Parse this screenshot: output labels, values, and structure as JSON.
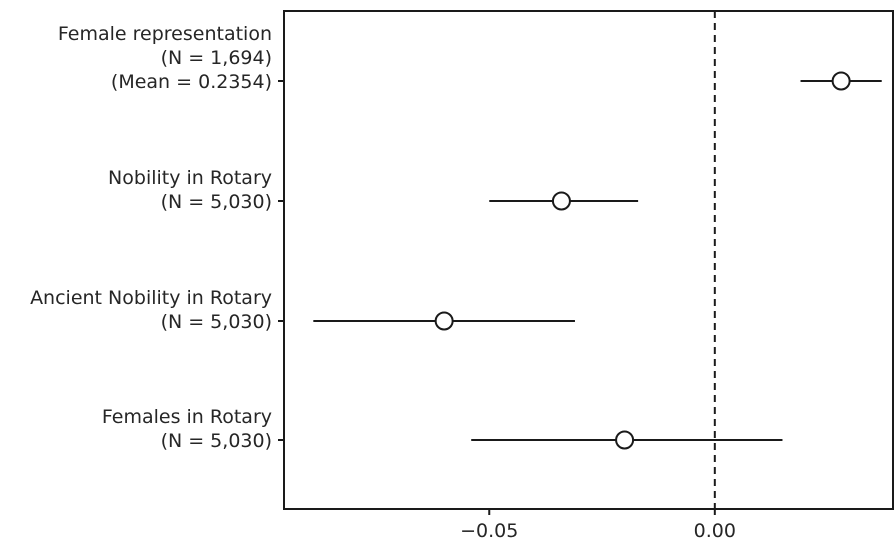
{
  "chart_data": {
    "type": "scatter",
    "subtype": "coefficient-plot",
    "title": "",
    "xlabel": "",
    "ylabel": "",
    "xlim": [
      -0.0955,
      0.0395
    ],
    "x_ticks": [
      {
        "value": -0.05,
        "label": "−0.05"
      },
      {
        "value": 0.0,
        "label": "0.00"
      }
    ],
    "reference_line": {
      "x": 0.0,
      "style": "dashed"
    },
    "grid": false,
    "rows": [
      {
        "label": [
          "Female representation",
          "(N = 1,694)",
          "(Mean = 0.2354)"
        ],
        "estimate": 0.028,
        "ci_low": 0.019,
        "ci_high": 0.037
      },
      {
        "label": [
          "Nobility in Rotary",
          "(N = 5,030)"
        ],
        "estimate": -0.034,
        "ci_low": -0.05,
        "ci_high": -0.017
      },
      {
        "label": [
          "Ancient Nobility in Rotary",
          "(N = 5,030)"
        ],
        "estimate": -0.06,
        "ci_low": -0.089,
        "ci_high": -0.031
      },
      {
        "label": [
          "Females in Rotary",
          "(N = 5,030)"
        ],
        "estimate": -0.02,
        "ci_low": -0.054,
        "ci_high": 0.015
      }
    ]
  }
}
